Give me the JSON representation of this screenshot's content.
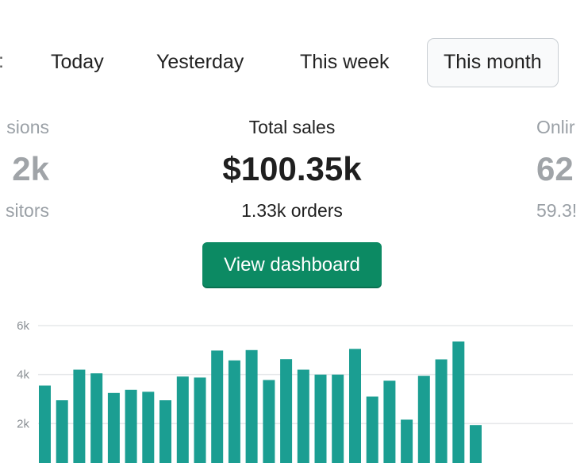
{
  "date_tabs": {
    "items": [
      {
        "label": "Today",
        "active": false
      },
      {
        "label": "Yesterday",
        "active": false
      },
      {
        "label": "This week",
        "active": false
      },
      {
        "label": "This month",
        "active": true
      }
    ]
  },
  "metrics": {
    "left": {
      "label": "sions",
      "value": "2k",
      "sub": "sitors"
    },
    "center": {
      "label": "Total sales",
      "value": "$100.35k",
      "sub": "1.33k orders"
    },
    "right": {
      "label": "Onlir",
      "value": "62",
      "sub": "59.3!"
    }
  },
  "dashboard_button": {
    "label": "View dashboard"
  },
  "colors": {
    "accent": "#0c8a63",
    "bar": "#1b9e92",
    "muted_text": "#9aa0a6"
  },
  "chart_data": {
    "type": "bar",
    "title": "",
    "xlabel": "",
    "ylabel": "",
    "ylim": [
      0,
      6000
    ],
    "y_ticks": [
      "6k",
      "4k",
      "2k"
    ],
    "grid": true,
    "legend": "none",
    "values": [
      3550,
      2950,
      4200,
      4050,
      3250,
      3380,
      3300,
      2950,
      3920,
      3880,
      4980,
      4580,
      5000,
      3780,
      4630,
      4200,
      4000,
      4000,
      5050,
      3100,
      3750,
      2160,
      3950,
      4620,
      5350,
      1940
    ]
  }
}
